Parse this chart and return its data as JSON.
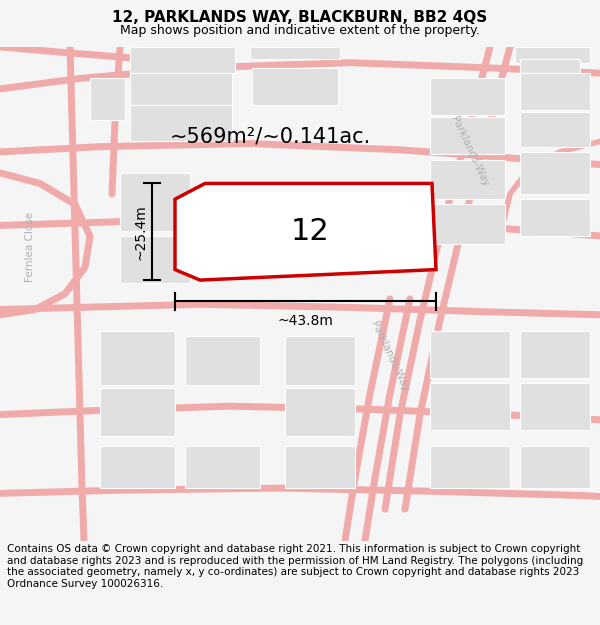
{
  "title": "12, PARKLANDS WAY, BLACKBURN, BB2 4QS",
  "subtitle": "Map shows position and indicative extent of the property.",
  "copyright": "Contains OS data © Crown copyright and database right 2021. This information is subject to Crown copyright and database rights 2023 and is reproduced with the permission of HM Land Registry. The polygons (including the associated geometry, namely x, y co-ordinates) are subject to Crown copyright and database rights 2023 Ordnance Survey 100026316.",
  "area_label": "~569m²/~0.141ac.",
  "plot_label": "12",
  "dim_width": "~43.8m",
  "dim_height": "~25.4m",
  "bg_color": "#f5f5f5",
  "map_bg": "#ffffff",
  "road_color": "#f0aaaa",
  "building_color": "#e0e0e0",
  "plot_outline_color": "#cc0000",
  "title_fontsize": 11,
  "subtitle_fontsize": 9,
  "copyright_fontsize": 7.5
}
